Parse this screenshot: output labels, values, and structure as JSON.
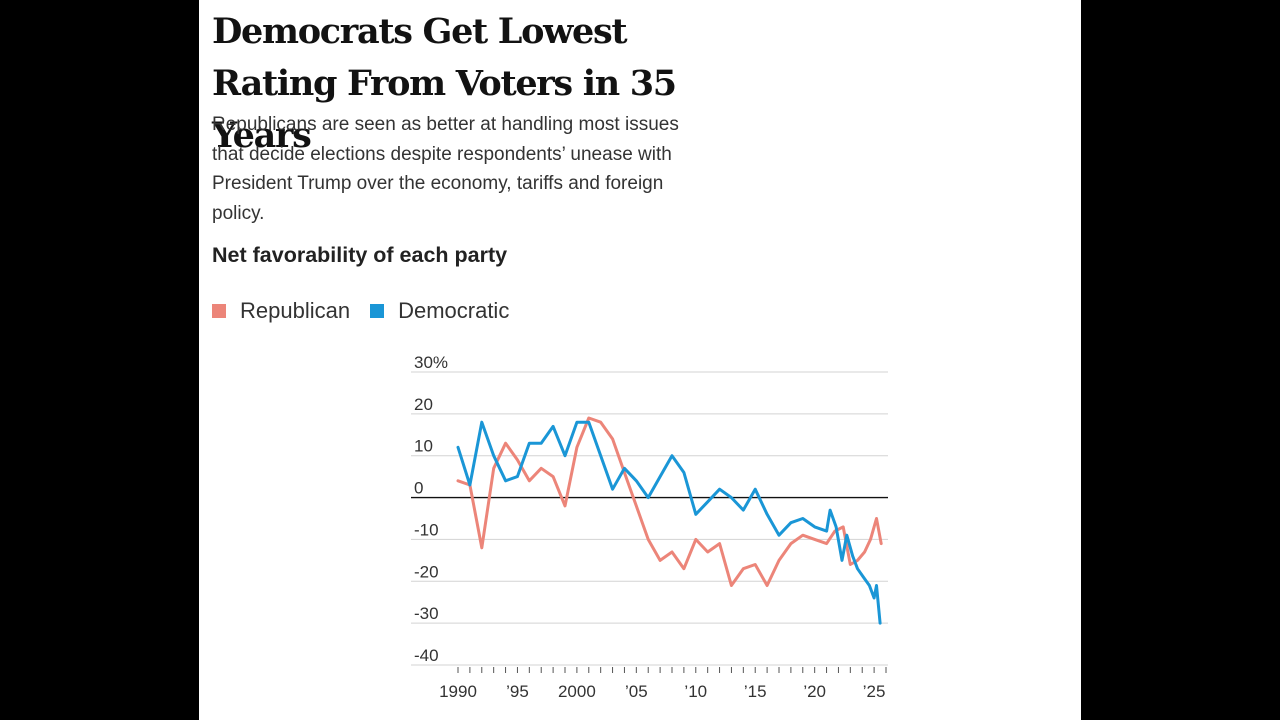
{
  "header": {
    "title": "Democrats Get Lowest Rating From Voters in 35 Years",
    "subtitle": "Republicans are seen as better at handling most issues that decide elections despite respondents’ unease with President Trump over the economy, tariffs and foreign policy."
  },
  "chart_heading": "Net favorability of each party",
  "colors": {
    "republican": "#ec8579",
    "democratic": "#1a96d6",
    "grid": "#d3d3d3",
    "zero_line": "#111111"
  },
  "chart_data": {
    "type": "line",
    "title": "Net favorability of each party",
    "xlabel": "",
    "ylabel": "",
    "xlim": [
      1989.5,
      2026
    ],
    "ylim": [
      -40,
      30
    ],
    "y_ticks": [
      {
        "value": 30,
        "label": "30%"
      },
      {
        "value": 20,
        "label": "20"
      },
      {
        "value": 10,
        "label": "10"
      },
      {
        "value": 0,
        "label": "0"
      },
      {
        "value": -10,
        "label": "-10"
      },
      {
        "value": -20,
        "label": "-20"
      },
      {
        "value": -30,
        "label": "-30"
      },
      {
        "value": -40,
        "label": "-40"
      }
    ],
    "x_tick_labels": [
      {
        "value": 1990,
        "label": "1990"
      },
      {
        "value": 1995,
        "label": "’95"
      },
      {
        "value": 2000,
        "label": "2000"
      },
      {
        "value": 2005,
        "label": "’05"
      },
      {
        "value": 2010,
        "label": "’10"
      },
      {
        "value": 2015,
        "label": "’15"
      },
      {
        "value": 2020,
        "label": "’20"
      },
      {
        "value": 2025,
        "label": "’25"
      }
    ],
    "x_minor_ticks": [
      1990,
      1991,
      1992,
      1993,
      1994,
      1995,
      1996,
      1997,
      1998,
      1999,
      2000,
      2001,
      2002,
      2003,
      2004,
      2005,
      2006,
      2007,
      2008,
      2009,
      2010,
      2011,
      2012,
      2013,
      2014,
      2015,
      2016,
      2017,
      2018,
      2019,
      2020,
      2021,
      2022,
      2023,
      2024,
      2025,
      2026
    ],
    "series": [
      {
        "name": "Republican",
        "color": "#ec8579",
        "points": [
          [
            1990,
            4
          ],
          [
            1991,
            3
          ],
          [
            1992,
            -12
          ],
          [
            1993,
            7
          ],
          [
            1994,
            13
          ],
          [
            1995,
            9
          ],
          [
            1996,
            4
          ],
          [
            1997,
            7
          ],
          [
            1998,
            5
          ],
          [
            1999,
            -2
          ],
          [
            2000,
            12
          ],
          [
            2001,
            19
          ],
          [
            2002,
            18
          ],
          [
            2003,
            14
          ],
          [
            2004,
            6
          ],
          [
            2005,
            -2
          ],
          [
            2006,
            -10
          ],
          [
            2007,
            -15
          ],
          [
            2008,
            -13
          ],
          [
            2009,
            -17
          ],
          [
            2010,
            -10
          ],
          [
            2011,
            -13
          ],
          [
            2012,
            -11
          ],
          [
            2013,
            -21
          ],
          [
            2014,
            -17
          ],
          [
            2015,
            -16
          ],
          [
            2016,
            -21
          ],
          [
            2017,
            -15
          ],
          [
            2018,
            -11
          ],
          [
            2019,
            -9
          ],
          [
            2020,
            -10
          ],
          [
            2021,
            -11
          ],
          [
            2021.7,
            -8
          ],
          [
            2022.4,
            -7
          ],
          [
            2023,
            -16
          ],
          [
            2023.6,
            -15
          ],
          [
            2024.2,
            -13
          ],
          [
            2024.7,
            -10
          ],
          [
            2025.2,
            -5
          ],
          [
            2025.6,
            -11
          ]
        ]
      },
      {
        "name": "Democratic",
        "color": "#1a96d6",
        "points": [
          [
            1990,
            12
          ],
          [
            1991,
            3
          ],
          [
            1992,
            18
          ],
          [
            1993,
            10
          ],
          [
            1994,
            4
          ],
          [
            1995,
            5
          ],
          [
            1996,
            13
          ],
          [
            1997,
            13
          ],
          [
            1998,
            17
          ],
          [
            1999,
            10
          ],
          [
            2000,
            18
          ],
          [
            2001,
            18
          ],
          [
            2002,
            10
          ],
          [
            2003,
            2
          ],
          [
            2004,
            7
          ],
          [
            2005,
            4
          ],
          [
            2006,
            0
          ],
          [
            2007,
            5
          ],
          [
            2008,
            10
          ],
          [
            2009,
            6
          ],
          [
            2010,
            -4
          ],
          [
            2011,
            -1
          ],
          [
            2012,
            2
          ],
          [
            2013,
            0
          ],
          [
            2014,
            -3
          ],
          [
            2015,
            2
          ],
          [
            2016,
            -4
          ],
          [
            2017,
            -9
          ],
          [
            2018,
            -6
          ],
          [
            2019,
            -5
          ],
          [
            2020,
            -7
          ],
          [
            2021,
            -8
          ],
          [
            2021.3,
            -3
          ],
          [
            2021.8,
            -7
          ],
          [
            2022.3,
            -15
          ],
          [
            2022.7,
            -9
          ],
          [
            2023.2,
            -14
          ],
          [
            2023.6,
            -17
          ],
          [
            2024.1,
            -19
          ],
          [
            2024.6,
            -21
          ],
          [
            2025,
            -24
          ],
          [
            2025.2,
            -21
          ],
          [
            2025.5,
            -30
          ]
        ]
      }
    ]
  }
}
